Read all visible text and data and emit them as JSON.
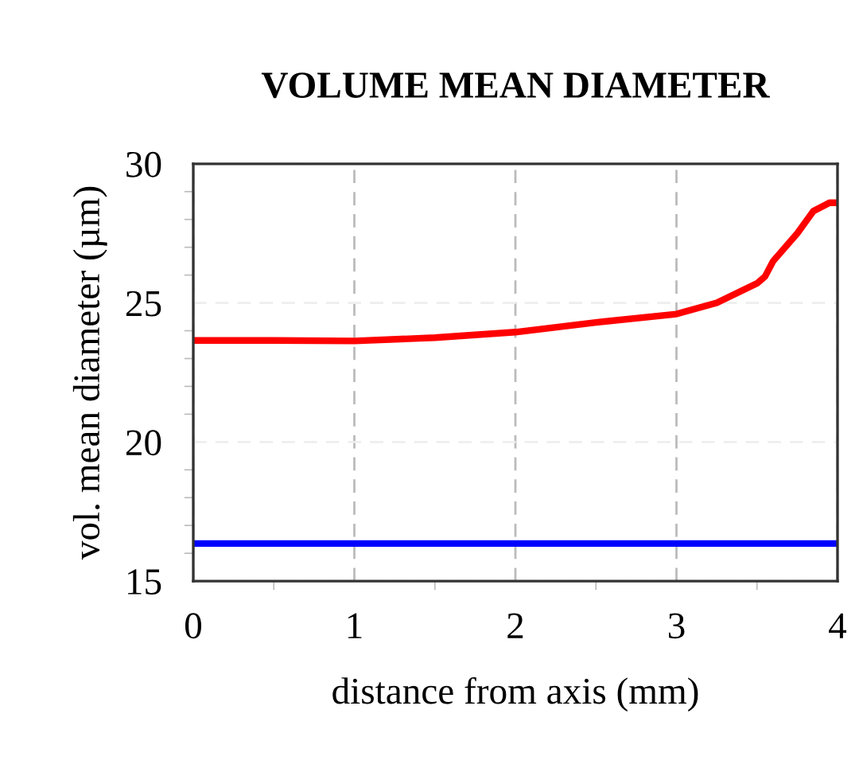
{
  "chart_data": {
    "type": "line",
    "title": "VOLUME MEAN DIAMETER",
    "xlabel": "distance from axis (mm)",
    "ylabel": "vol. mean diameter (µm)",
    "series": [
      {
        "color": "#ff0000",
        "x": [
          0,
          0.5,
          1,
          1.5,
          2,
          2.5,
          3,
          3.25,
          3.5,
          3.55,
          3.6,
          3.75,
          3.85,
          3.95,
          4
        ],
        "values": [
          23.65,
          23.65,
          23.63,
          23.75,
          23.95,
          24.3,
          24.6,
          25.0,
          25.7,
          25.95,
          26.5,
          27.5,
          28.3,
          28.6,
          28.6
        ]
      },
      {
        "color": "#0000ff",
        "x": [
          0,
          4
        ],
        "values": [
          16.35,
          16.35
        ]
      }
    ],
    "xlim": [
      0,
      4
    ],
    "xticks": [
      0,
      1,
      2,
      3,
      4
    ],
    "ylim": [
      15,
      30
    ],
    "yticks": [
      15,
      20,
      25,
      30
    ],
    "grid": true,
    "line_style": "solid",
    "marker": "none"
  }
}
